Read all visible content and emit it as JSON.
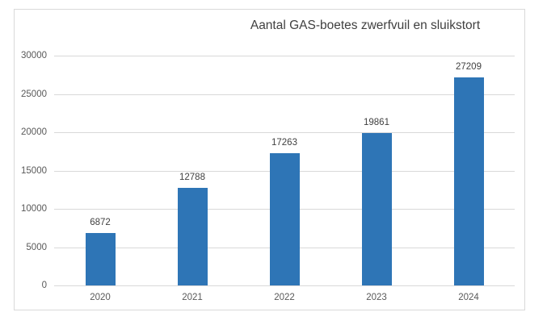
{
  "chart_data": {
    "type": "bar",
    "title": "Aantal GAS-boetes zwerfvuil en sluikstort",
    "categories": [
      "2020",
      "2021",
      "2022",
      "2023",
      "2024"
    ],
    "values": [
      6872,
      12788,
      17263,
      19861,
      27209
    ],
    "data_labels": [
      "6872",
      "12788",
      "17263",
      "19861",
      "27209"
    ],
    "y_ticks": [
      0,
      5000,
      10000,
      15000,
      20000,
      25000,
      30000
    ],
    "y_tick_labels": [
      "0",
      "5000",
      "10000",
      "15000",
      "20000",
      "25000",
      "30000"
    ],
    "ylim": [
      0,
      30000
    ],
    "xlabel": "",
    "ylabel": "",
    "grid": true,
    "legend": false,
    "colors": {
      "bar": "#2e75b6",
      "gridline": "#d9d9d9",
      "axis_line": "#d9d9d9",
      "tick_label": "#595959",
      "data_label": "#404040",
      "title": "#404040",
      "frame_border": "#d9d9d9",
      "background": "#ffffff"
    }
  }
}
